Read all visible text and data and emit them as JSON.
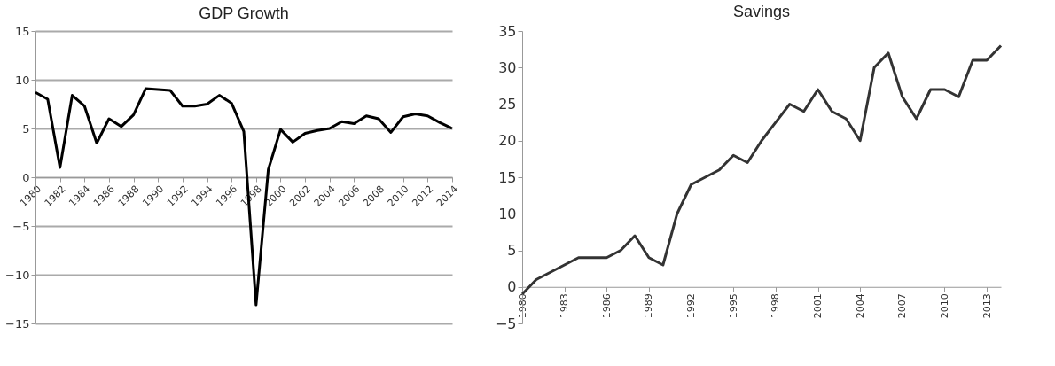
{
  "chart_data": [
    {
      "type": "line",
      "title": "GDP Growth",
      "color": "#000000",
      "x": [
        1980,
        1981,
        1982,
        1983,
        1984,
        1985,
        1986,
        1987,
        1988,
        1989,
        1990,
        1991,
        1992,
        1993,
        1994,
        1995,
        1996,
        1997,
        1998,
        1999,
        2000,
        2001,
        2002,
        2003,
        2004,
        2005,
        2006,
        2007,
        2008,
        2009,
        2010,
        2011,
        2012,
        2013,
        2014
      ],
      "values": [
        8.7,
        8.0,
        1.0,
        8.4,
        7.3,
        3.5,
        6.0,
        5.2,
        6.4,
        9.1,
        9.0,
        8.9,
        7.3,
        7.3,
        7.5,
        8.4,
        7.6,
        4.7,
        -13.1,
        0.8,
        4.9,
        3.6,
        4.5,
        4.8,
        5.0,
        5.7,
        5.5,
        6.3,
        6.0,
        4.6,
        6.2,
        6.5,
        6.3,
        5.6,
        5.0
      ],
      "xlim": [
        1980,
        2014
      ],
      "xticks": [
        1980,
        1982,
        1984,
        1986,
        1988,
        1990,
        1992,
        1994,
        1996,
        1998,
        2000,
        2002,
        2004,
        2006,
        2008,
        2010,
        2012,
        2014
      ],
      "ylim": [
        -15,
        15
      ],
      "yticks": [
        -15,
        -10,
        -5,
        0,
        5,
        10,
        15
      ],
      "grid": "y"
    },
    {
      "type": "line",
      "title": "Savings",
      "color": "#333333",
      "x": [
        1980,
        1981,
        1982,
        1983,
        1984,
        1985,
        1986,
        1987,
        1988,
        1989,
        1990,
        1991,
        1992,
        1993,
        1994,
        1995,
        1996,
        1997,
        1998,
        1999,
        2000,
        2001,
        2002,
        2003,
        2004,
        2005,
        2006,
        2007,
        2008,
        2009,
        2010,
        2011,
        2012,
        2013,
        2014
      ],
      "values": [
        -1,
        1,
        2,
        3,
        4,
        4,
        4,
        5,
        7,
        4,
        3,
        10,
        14,
        15,
        16,
        18,
        17,
        20,
        22.5,
        25,
        24,
        27,
        24,
        23,
        20,
        30,
        32,
        26,
        23,
        27,
        27,
        26,
        31,
        31,
        33
      ],
      "xlim": [
        1980,
        2014
      ],
      "xticks": [
        1980,
        1983,
        1986,
        1989,
        1992,
        1995,
        1998,
        2001,
        2004,
        2007,
        2010,
        2013
      ],
      "ylim": [
        -5,
        35
      ],
      "yticks": [
        -5,
        0,
        5,
        10,
        15,
        20,
        25,
        30,
        35
      ]
    }
  ]
}
